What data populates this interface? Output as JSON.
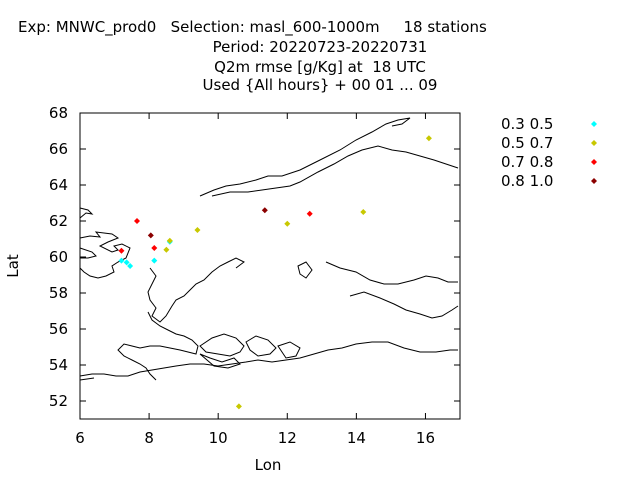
{
  "header": {
    "line1": "Exp: MNWC_prod0   Selection: masl_600-1000m     18 stations",
    "line2": "Period: 20220723-20220731",
    "line3": "Q2m rmse [g/Kg] at  18 UTC",
    "line4": "Used {All hours} + 00 01 ... 09"
  },
  "chart_data": {
    "type": "scatter",
    "title": "Q2m rmse [g/Kg] at  18 UTC",
    "xlabel": "Lon",
    "ylabel": "Lat",
    "xlim": [
      6,
      17
    ],
    "ylim": [
      51,
      68
    ],
    "xticks": [
      "6",
      "8",
      "10",
      "12",
      "14",
      "16"
    ],
    "yticks": [
      "52",
      "54",
      "56",
      "58",
      "60",
      "62",
      "64",
      "66",
      "68"
    ],
    "grid": false,
    "legend_position": "right",
    "series": [
      {
        "name": "0.3 0.5",
        "color": "#00ffff",
        "points": [
          [
            7.2,
            59.8
          ],
          [
            7.35,
            59.7
          ],
          [
            7.45,
            59.5
          ],
          [
            8.15,
            59.8
          ],
          [
            8.6,
            60.85
          ]
        ]
      },
      {
        "name": "0.5 0.7",
        "color": "#c8c800",
        "points": [
          [
            8.5,
            60.4
          ],
          [
            8.6,
            60.9
          ],
          [
            9.4,
            61.5
          ],
          [
            12.0,
            61.85
          ],
          [
            14.2,
            62.5
          ],
          [
            16.1,
            66.6
          ],
          [
            10.6,
            51.7
          ]
        ]
      },
      {
        "name": "0.7 0.8",
        "color": "#ff0000",
        "points": [
          [
            7.65,
            62.0
          ],
          [
            7.2,
            60.35
          ],
          [
            8.15,
            60.5
          ],
          [
            12.65,
            62.4
          ]
        ]
      },
      {
        "name": "0.8 1.0",
        "color": "#8b0000",
        "points": [
          [
            8.05,
            61.2
          ],
          [
            11.35,
            62.6
          ]
        ]
      }
    ]
  }
}
